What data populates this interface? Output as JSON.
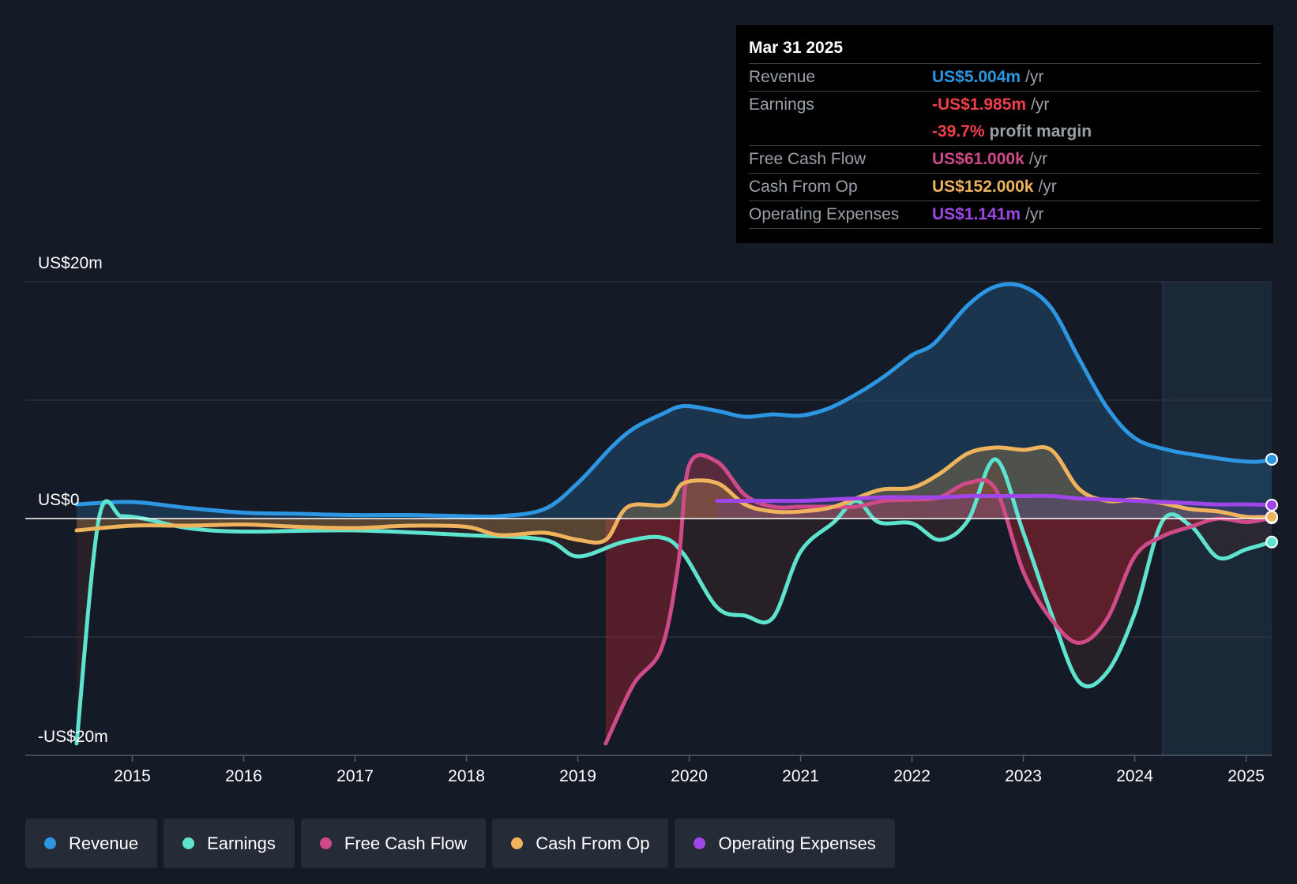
{
  "chart_data": {
    "type": "line",
    "title": "",
    "xlabel": "",
    "ylabel": "",
    "ylim": [
      -20,
      20
    ],
    "xlim": [
      2014.5,
      2025.23
    ],
    "y_axis_labels": {
      "top": "US$20m",
      "zero": "US$0",
      "bottom": "-US$20m"
    },
    "x_ticks": [
      "2015",
      "2016",
      "2017",
      "2018",
      "2019",
      "2020",
      "2021",
      "2022",
      "2023",
      "2024",
      "2025"
    ],
    "x_tick_values": [
      2015,
      2016,
      2017,
      2018,
      2019,
      2020,
      2021,
      2022,
      2023,
      2024,
      2025
    ],
    "forecast_start": 2024.25,
    "units": "US$m",
    "series": [
      {
        "name": "Revenue",
        "color": "#2d96e2",
        "x": [
          2014.5,
          2015.0,
          2015.5,
          2016.0,
          2016.5,
          2017.0,
          2017.5,
          2018.0,
          2018.3,
          2018.7,
          2019.0,
          2019.3,
          2019.5,
          2019.75,
          2019.95,
          2020.25,
          2020.5,
          2020.75,
          2021.0,
          2021.25,
          2021.5,
          2021.75,
          2022.0,
          2022.2,
          2022.5,
          2022.75,
          2023.0,
          2023.25,
          2023.5,
          2023.75,
          2024.0,
          2024.3,
          2024.6,
          2024.9,
          2025.1,
          2025.23
        ],
        "values": [
          1.2,
          1.4,
          0.9,
          0.5,
          0.4,
          0.3,
          0.3,
          0.2,
          0.2,
          0.8,
          3.0,
          6.0,
          7.6,
          8.8,
          9.5,
          9.1,
          8.6,
          8.8,
          8.7,
          9.3,
          10.5,
          12.0,
          13.8,
          14.8,
          18.0,
          19.6,
          19.6,
          17.8,
          13.5,
          9.4,
          6.8,
          5.8,
          5.3,
          4.9,
          4.8,
          5.004
        ]
      },
      {
        "name": "Earnings",
        "color": "#5ee3cf",
        "x": [
          2014.5,
          2014.7,
          2014.9,
          2015.1,
          2015.5,
          2016.0,
          2017.0,
          2018.0,
          2018.7,
          2019.0,
          2019.4,
          2019.75,
          2019.95,
          2020.25,
          2020.5,
          2020.75,
          2021.0,
          2021.3,
          2021.5,
          2021.7,
          2022.0,
          2022.25,
          2022.5,
          2022.75,
          2023.0,
          2023.25,
          2023.5,
          2023.75,
          2024.0,
          2024.25,
          2024.5,
          2024.75,
          2025.0,
          2025.23
        ],
        "values": [
          -19.0,
          0.0,
          0.2,
          0.0,
          -0.8,
          -1.1,
          -1.0,
          -1.4,
          -1.8,
          -3.2,
          -2.0,
          -1.6,
          -3.0,
          -7.5,
          -8.2,
          -8.4,
          -2.8,
          -0.3,
          1.5,
          -0.3,
          -0.4,
          -1.8,
          -0.2,
          5.0,
          -1.2,
          -8.0,
          -13.8,
          -13.0,
          -8.0,
          -0.2,
          -0.6,
          -3.3,
          -2.6,
          -1.985
        ]
      },
      {
        "name": "Free Cash Flow",
        "color": "#cf4a89",
        "x": [
          2019.25,
          2019.5,
          2019.75,
          2019.9,
          2020.0,
          2020.25,
          2020.5,
          2020.75,
          2021.0,
          2021.3,
          2021.5,
          2021.75,
          2022.0,
          2022.25,
          2022.5,
          2022.75,
          2023.0,
          2023.25,
          2023.5,
          2023.75,
          2024.0,
          2024.25,
          2024.5,
          2024.75,
          2025.0,
          2025.23
        ],
        "values": [
          -19.0,
          -14.0,
          -11.0,
          -4.0,
          4.5,
          4.8,
          2.0,
          1.0,
          1.0,
          1.0,
          1.0,
          1.5,
          1.6,
          1.8,
          3.0,
          2.5,
          -4.5,
          -8.5,
          -10.5,
          -8.5,
          -3.2,
          -1.5,
          -0.7,
          0.0,
          -0.3,
          0.061
        ]
      },
      {
        "name": "Cash From Op",
        "color": "#f0b35d",
        "x": [
          2014.5,
          2015.0,
          2015.5,
          2016.0,
          2016.5,
          2017.0,
          2017.5,
          2018.0,
          2018.3,
          2018.7,
          2019.0,
          2019.25,
          2019.45,
          2019.8,
          2019.95,
          2020.25,
          2020.5,
          2020.75,
          2021.0,
          2021.3,
          2021.7,
          2022.0,
          2022.25,
          2022.5,
          2022.75,
          2023.0,
          2023.25,
          2023.5,
          2023.75,
          2024.0,
          2024.25,
          2024.5,
          2024.75,
          2025.0,
          2025.23
        ],
        "values": [
          -1.0,
          -0.6,
          -0.6,
          -0.5,
          -0.7,
          -0.8,
          -0.6,
          -0.7,
          -1.4,
          -1.2,
          -1.8,
          -1.8,
          1.0,
          1.2,
          3.0,
          3.0,
          1.2,
          0.6,
          0.6,
          1.0,
          2.4,
          2.6,
          3.8,
          5.5,
          6.0,
          5.8,
          5.8,
          2.5,
          1.5,
          1.6,
          1.3,
          0.8,
          0.6,
          0.15,
          0.152
        ]
      },
      {
        "name": "Operating Expenses",
        "color": "#a046e8",
        "x": [
          2020.25,
          2020.5,
          2020.75,
          2021.0,
          2021.25,
          2021.5,
          2021.75,
          2022.0,
          2022.25,
          2022.5,
          2022.75,
          2023.0,
          2023.25,
          2023.5,
          2023.75,
          2024.0,
          2024.25,
          2024.5,
          2024.75,
          2025.0,
          2025.23
        ],
        "values": [
          1.5,
          1.5,
          1.5,
          1.5,
          1.6,
          1.7,
          1.8,
          1.8,
          1.8,
          1.9,
          1.9,
          1.9,
          1.9,
          1.7,
          1.6,
          1.5,
          1.4,
          1.3,
          1.2,
          1.2,
          1.141
        ]
      }
    ]
  },
  "tooltip": {
    "date": "Mar 31 2025",
    "revenue_label": "Revenue",
    "revenue_value": "US$5.004m",
    "revenue_unit": "/yr",
    "earnings_label": "Earnings",
    "earnings_value": "-US$1.985m",
    "earnings_unit": "/yr",
    "margin_value": "-39.7%",
    "margin_unit": "profit margin",
    "fcf_label": "Free Cash Flow",
    "fcf_value": "US$61.000k",
    "fcf_unit": "/yr",
    "cfo_label": "Cash From Op",
    "cfo_value": "US$152.000k",
    "cfo_unit": "/yr",
    "opex_label": "Operating Expenses",
    "opex_value": "US$1.141m",
    "opex_unit": "/yr",
    "colors": {
      "revenue": "#2d96e2",
      "earnings": "#f0404b",
      "fcf": "#cf4a89",
      "cfo": "#f0b35d",
      "opex": "#a046e8"
    }
  },
  "legend": [
    {
      "label": "Revenue",
      "color": "#2d96e2"
    },
    {
      "label": "Earnings",
      "color": "#5ee3cf"
    },
    {
      "label": "Free Cash Flow",
      "color": "#cf4a89"
    },
    {
      "label": "Cash From Op",
      "color": "#f0b35d"
    },
    {
      "label": "Operating Expenses",
      "color": "#a046e8"
    }
  ]
}
